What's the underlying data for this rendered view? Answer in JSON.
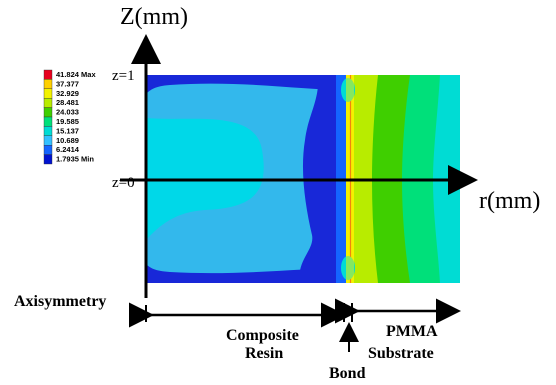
{
  "figure": {
    "z_axis_title": "Z(mm)",
    "r_axis_title": "r(mm)",
    "z_ticks": [
      "z=1",
      "z=0"
    ],
    "axisymmetry_label": "Axisymmetry",
    "regions": {
      "composite_line1": "Composite",
      "composite_line2": "Resin",
      "bond": "Bond",
      "pmma_line1": "PMMA",
      "pmma_line2": "Substrate"
    }
  },
  "legend": {
    "levels": [
      "41.824 Max",
      "37.377",
      "32.929",
      "28.481",
      "24.033",
      "19.585",
      "15.137",
      "10.689",
      "6.2414",
      "1.7935 Min"
    ],
    "colors": [
      "#e8001e",
      "#ffd000",
      "#f2f200",
      "#b8ec00",
      "#3fcf00",
      "#00e07a",
      "#00dcd4",
      "#33c0ff",
      "#1464ff",
      "#0012d0"
    ]
  },
  "palette": {
    "composite_bg": "#33b8ec",
    "composite_dark": "#1828d8",
    "composite_light": "#00e6ee",
    "pmma_band_green": "#3fcf00",
    "pmma_band_lime": "#b8ec00",
    "pmma_outer": "#00dcd4"
  }
}
